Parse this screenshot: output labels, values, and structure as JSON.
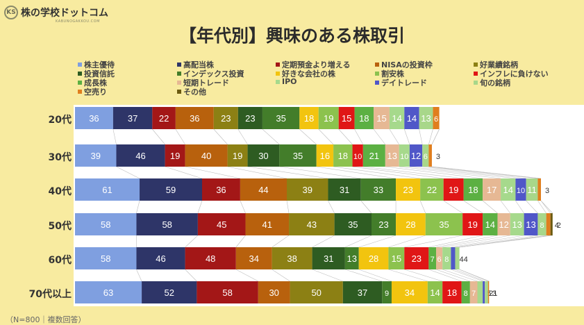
{
  "logo": {
    "mark": "KS",
    "name": "株の学校ドットコム",
    "sub": "KABUNOGAKKOU.COM"
  },
  "footnote": "（N=800｜複数回答）",
  "chart_data": {
    "type": "bar",
    "stacked": true,
    "orientation": "horizontal",
    "title": "【年代別】興味のある株取引",
    "legend_placement": "top",
    "categories": [
      "20代",
      "30代",
      "40代",
      "50代",
      "60代",
      "70代以上"
    ],
    "series": [
      {
        "name": "株主優待",
        "color": "#7f9fe0",
        "values": [
          36,
          39,
          61,
          58,
          58,
          63
        ]
      },
      {
        "name": "高配当株",
        "color": "#2e3568",
        "values": [
          37,
          46,
          59,
          58,
          46,
          52
        ]
      },
      {
        "name": "定期預金より増える",
        "color": "#a31717",
        "values": [
          22,
          19,
          36,
          45,
          48,
          58
        ]
      },
      {
        "name": "NISAの投資枠",
        "color": "#b8610d",
        "values": [
          36,
          40,
          44,
          41,
          34,
          30
        ]
      },
      {
        "name": "好業績銘柄",
        "color": "#8c8014",
        "values": [
          23,
          19,
          39,
          43,
          38,
          50
        ]
      },
      {
        "name": "投資信託",
        "color": "#2e5c22",
        "values": [
          23,
          30,
          31,
          35,
          31,
          37
        ]
      },
      {
        "name": "インデックス投資",
        "color": "#437d2a",
        "values": [
          35,
          35,
          33,
          23,
          13,
          9
        ]
      },
      {
        "name": "好きな会社の株",
        "color": "#f2c40f",
        "values": [
          18,
          16,
          23,
          28,
          28,
          34
        ]
      },
      {
        "name": "割安株",
        "color": "#8cc24e",
        "values": [
          19,
          18,
          22,
          35,
          15,
          14
        ]
      },
      {
        "name": "インフレに負けない",
        "color": "#e01616",
        "values": [
          15,
          10,
          19,
          19,
          23,
          18
        ]
      },
      {
        "name": "成長株",
        "color": "#5cb043",
        "values": [
          18,
          21,
          18,
          14,
          7,
          8
        ]
      },
      {
        "name": "短期トレード",
        "color": "#e6b894",
        "values": [
          15,
          13,
          17,
          12,
          6,
          7
        ]
      },
      {
        "name": "IPO",
        "color": "#a6d98c",
        "values": [
          14,
          10,
          14,
          13,
          8,
          5
        ]
      },
      {
        "name": "デイトレード",
        "color": "#5057c8",
        "values": [
          14,
          12,
          10,
          13,
          4,
          2
        ]
      },
      {
        "name": "旬の銘柄",
        "color": "#a8d78a",
        "values": [
          13,
          6,
          11,
          8,
          4,
          3
        ]
      },
      {
        "name": "空売り",
        "color": "#e07e1e",
        "values": [
          6,
          3,
          3,
          4,
          0,
          1
        ]
      },
      {
        "name": "その他",
        "color": "#6b5a10",
        "values": [
          0,
          0,
          0,
          2,
          0,
          0
        ]
      }
    ]
  }
}
